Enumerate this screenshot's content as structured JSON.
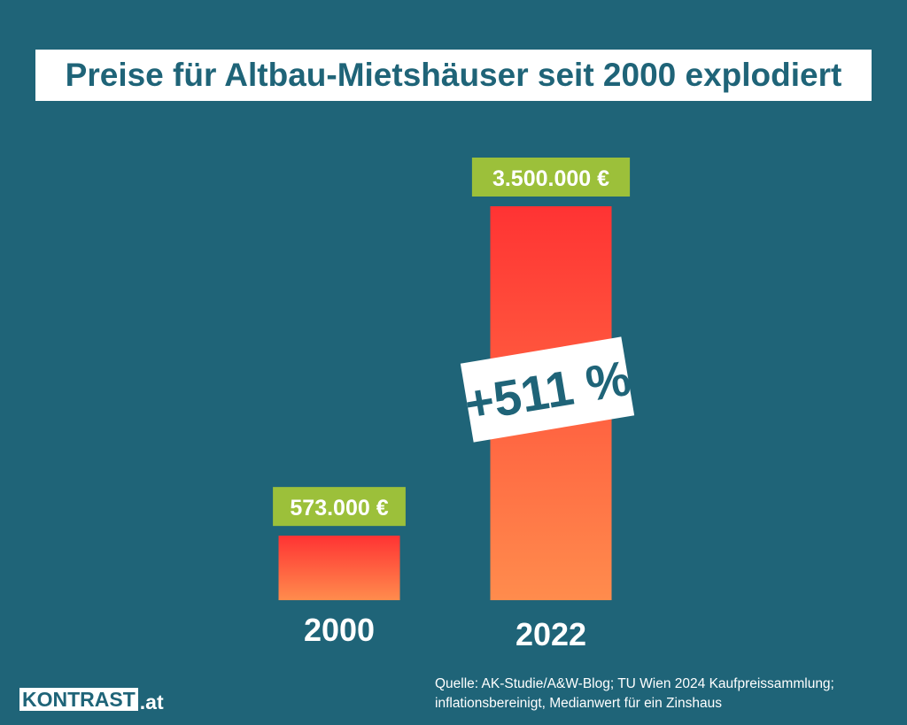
{
  "chart_data": {
    "type": "bar",
    "title": "Preise für Altbau-Mietshäuser seit 2000 explodiert",
    "categories": [
      "2000",
      "2022"
    ],
    "values": [
      573000,
      3500000
    ],
    "value_labels": [
      "573.000 €",
      "3.500.000 €"
    ],
    "ylim": [
      0,
      3500000
    ],
    "grid": false,
    "annotation": "+511 %"
  },
  "colors": {
    "background": "#1f6478",
    "bar_top": "#ff3333",
    "bar_bottom": "#ff8c4d",
    "value_label_bg": "#9cc03a",
    "text_light": "#ffffff"
  },
  "footer": {
    "logo_main": "KONTRAST",
    "logo_suffix": ".at",
    "source_line1": "Quelle: AK-Studie/A&W-Blog; TU Wien 2024 Kaufpreissammlung;",
    "source_line2": "inflationsbereinigt, Medianwert für ein Zinshaus"
  }
}
